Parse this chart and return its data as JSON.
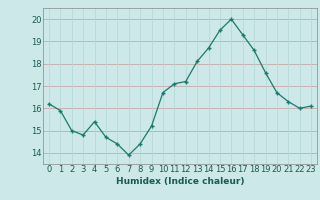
{
  "x": [
    0,
    1,
    2,
    3,
    4,
    5,
    6,
    7,
    8,
    9,
    10,
    11,
    12,
    13,
    14,
    15,
    16,
    17,
    18,
    19,
    20,
    21,
    22,
    23
  ],
  "y": [
    16.2,
    15.9,
    15.0,
    14.8,
    15.4,
    14.7,
    14.4,
    13.9,
    14.4,
    15.2,
    16.7,
    17.1,
    17.2,
    18.1,
    18.7,
    19.5,
    20.0,
    19.3,
    18.6,
    17.6,
    16.7,
    16.3,
    16.0,
    16.1
  ],
  "line_color": "#1a7a6e",
  "marker_color": "#1a7a6e",
  "bg_color": "#cce8e8",
  "grid_h_color": "#c8a8a8",
  "grid_v_color": "#b8d8d8",
  "xlabel": "Humidex (Indice chaleur)",
  "ylim": [
    13.5,
    20.5
  ],
  "xlim": [
    -0.5,
    23.5
  ],
  "yticks": [
    14,
    15,
    16,
    17,
    18,
    19,
    20
  ],
  "xticks": [
    0,
    1,
    2,
    3,
    4,
    5,
    6,
    7,
    8,
    9,
    10,
    11,
    12,
    13,
    14,
    15,
    16,
    17,
    18,
    19,
    20,
    21,
    22,
    23
  ],
  "label_fontsize": 6.5,
  "tick_fontsize": 6
}
